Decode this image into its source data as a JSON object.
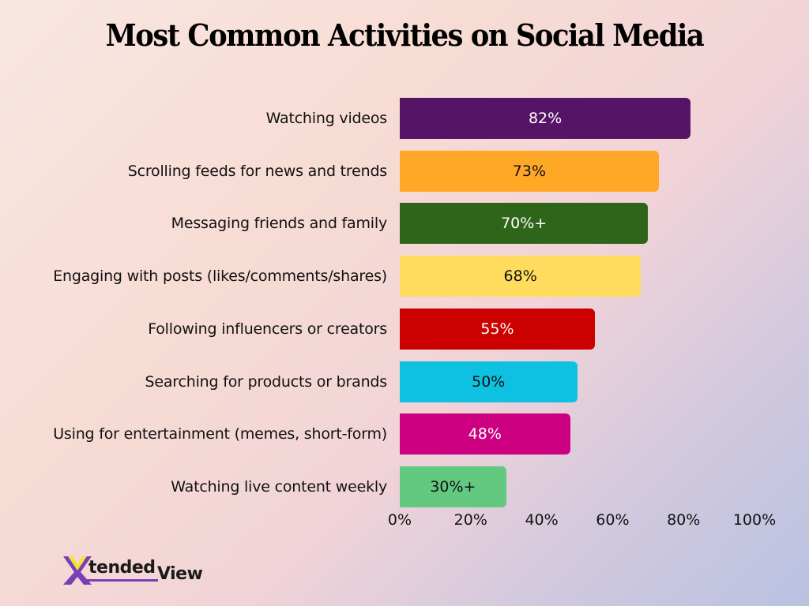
{
  "title": "Most Common Activities on Social Media",
  "chart_data": {
    "type": "bar",
    "orientation": "horizontal",
    "title": "Most Common Activities on Social Media",
    "xlabel": "",
    "ylabel": "",
    "xlim": [
      0,
      100
    ],
    "x_ticks": [
      "0%",
      "20%",
      "40%",
      "60%",
      "80%",
      "100%"
    ],
    "grid": false,
    "legend": null,
    "categories": [
      "Watching videos",
      "Scrolling feeds for news and trends",
      "Messaging friends and family",
      "Engaging with posts (likes/comments/shares)",
      "Following influencers or creators",
      "Searching for products or brands",
      "Using for entertainment (memes, short-form)",
      "Watching live content weekly"
    ],
    "values": [
      82,
      73,
      70,
      68,
      55,
      50,
      48,
      30
    ],
    "data_labels": [
      "82%",
      "73%",
      "70%+",
      "68%",
      "55%",
      "50%",
      "48%",
      "30%+"
    ],
    "colors": [
      "#561466",
      "#ffa726",
      "#2f641b",
      "#ffdc5e",
      "#cc0000",
      "#0ec1e0",
      "#cc0080",
      "#63c880"
    ],
    "label_colors": [
      "#ffffff",
      "#111111",
      "#ffffff",
      "#111111",
      "#ffffff",
      "#111111",
      "#ffffff",
      "#111111"
    ]
  },
  "logo": {
    "mark": "X",
    "text_main": "tended",
    "text_sub": "View",
    "colors": {
      "purple": "#7b3fb5",
      "yellow": "#f2e23a",
      "dark": "#1a1a1a"
    }
  }
}
